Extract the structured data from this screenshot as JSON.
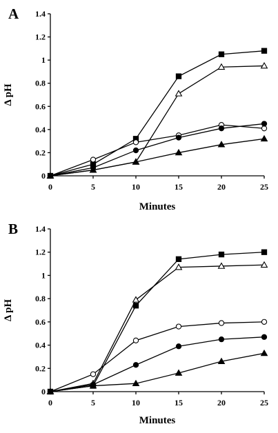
{
  "chart_data": [
    {
      "type": "line",
      "panel_label": "A",
      "xlabel": "Minutes",
      "ylabel": "Δ pH",
      "xlim": [
        0,
        25
      ],
      "ylim": [
        0,
        1.4
      ],
      "x_ticks": [
        0,
        5,
        10,
        15,
        20,
        25
      ],
      "y_ticks": [
        0,
        0.2,
        0.4,
        0.6,
        0.8,
        1,
        1.2,
        1.4
      ],
      "x_tick_labels": [
        "0",
        "5",
        "10",
        "15",
        "20",
        "25"
      ],
      "y_tick_labels": [
        "0",
        "0.2",
        "0.4",
        "0.6",
        "0.8",
        "1",
        "1.2",
        "1.4"
      ],
      "grid": false,
      "legend": "none",
      "x": [
        0,
        5,
        10,
        15,
        20,
        25
      ],
      "series": [
        {
          "marker": "filled-square",
          "values": [
            0.0,
            0.1,
            0.32,
            0.86,
            1.05,
            1.08
          ]
        },
        {
          "marker": "open-triangle",
          "values": [
            0.0,
            0.05,
            0.12,
            0.71,
            0.94,
            0.95
          ]
        },
        {
          "marker": "open-circle",
          "values": [
            0.0,
            0.14,
            0.29,
            0.35,
            0.44,
            0.41
          ]
        },
        {
          "marker": "filled-circle",
          "values": [
            0.0,
            0.07,
            0.22,
            0.33,
            0.41,
            0.45
          ]
        },
        {
          "marker": "filled-triangle",
          "values": [
            0.0,
            0.05,
            0.12,
            0.2,
            0.27,
            0.32
          ]
        }
      ]
    },
    {
      "type": "line",
      "panel_label": "B",
      "xlabel": "Minutes",
      "ylabel": "Δ pH",
      "xlim": [
        0,
        25
      ],
      "ylim": [
        0,
        1.4
      ],
      "x_ticks": [
        0,
        5,
        10,
        15,
        20,
        25
      ],
      "y_ticks": [
        0,
        0.2,
        0.4,
        0.6,
        0.8,
        1,
        1.2,
        1.4
      ],
      "x_tick_labels": [
        "0",
        "5",
        "10",
        "15",
        "20",
        "25"
      ],
      "y_tick_labels": [
        "0",
        "0.2",
        "0.4",
        "0.6",
        "0.8",
        "1",
        "1.2",
        "1.4"
      ],
      "grid": false,
      "legend": "none",
      "x": [
        0,
        5,
        10,
        15,
        20,
        25
      ],
      "series": [
        {
          "marker": "filled-square",
          "values": [
            0.0,
            0.05,
            0.74,
            1.14,
            1.18,
            1.2
          ]
        },
        {
          "marker": "open-triangle",
          "values": [
            0.0,
            0.07,
            0.79,
            1.07,
            1.08,
            1.09
          ]
        },
        {
          "marker": "open-circle",
          "values": [
            0.0,
            0.15,
            0.44,
            0.56,
            0.59,
            0.6
          ]
        },
        {
          "marker": "filled-circle",
          "values": [
            0.0,
            0.06,
            0.23,
            0.39,
            0.45,
            0.47
          ]
        },
        {
          "marker": "filled-triangle",
          "values": [
            0.0,
            0.05,
            0.07,
            0.16,
            0.26,
            0.33
          ]
        }
      ]
    }
  ]
}
